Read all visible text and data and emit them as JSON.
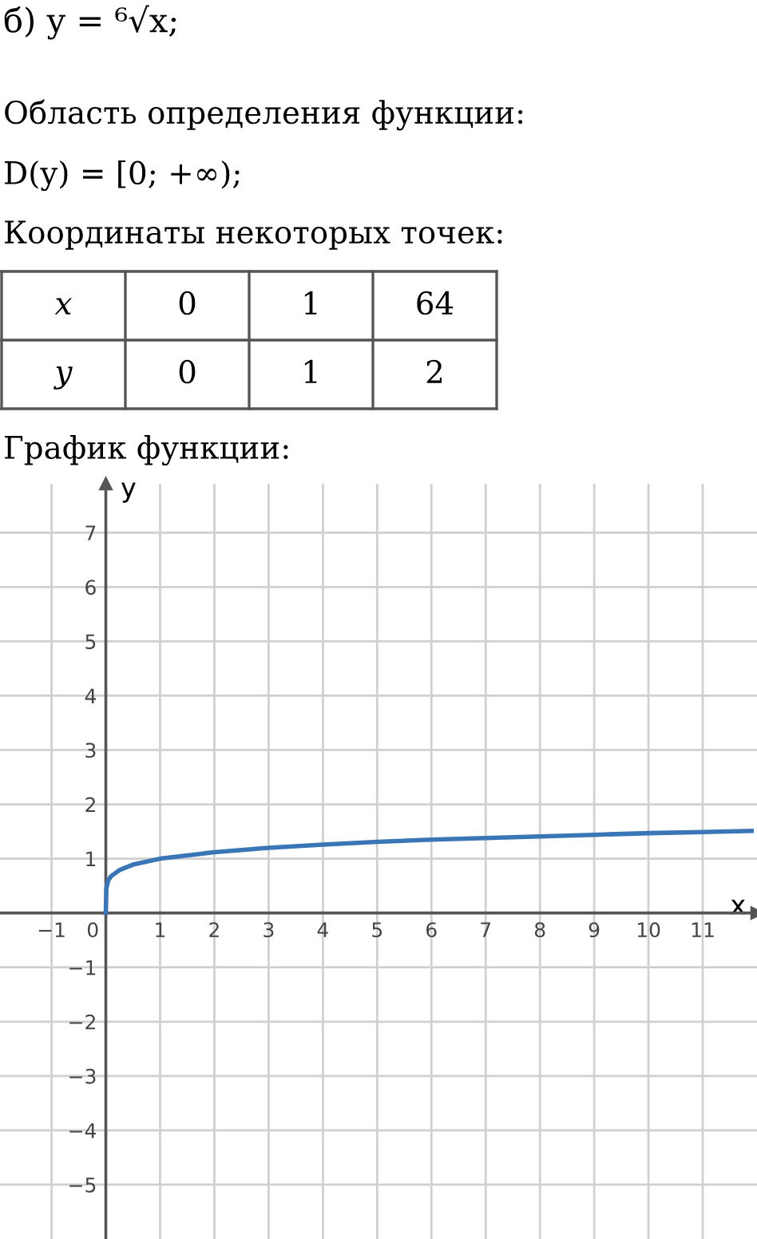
{
  "chart_data": {
    "type": "line",
    "title": "б) y = ⁶√x;",
    "annotations": [
      "Область определения функции:",
      "D(y) = [0; +∞);",
      "Координаты некоторых точек:",
      "x",
      "0",
      "1",
      "64",
      "y",
      "0",
      "1",
      "2",
      "График функции:"
    ],
    "xlabel": "x",
    "ylabel": "y",
    "series": [
      {
        "color": "#3a75b6",
        "x": [
          0,
          0.01,
          0.05,
          0.1,
          0.25,
          0.5,
          1,
          2,
          3,
          4,
          5,
          6,
          7,
          8,
          9,
          10,
          11,
          11.9
        ],
        "values": [
          0,
          0.46,
          0.61,
          0.68,
          0.79,
          0.89,
          1,
          1.12,
          1.2,
          1.26,
          1.31,
          1.35,
          1.38,
          1.41,
          1.44,
          1.47,
          1.49,
          1.51
        ]
      }
    ],
    "xlim": [
      -1.95,
      12
    ],
    "ylim": [
      -6,
      7.9
    ],
    "xticks": [
      -1,
      0,
      1,
      2,
      3,
      4,
      5,
      6,
      7,
      8,
      9,
      10,
      11
    ],
    "yticks": [
      -5,
      -4,
      -3,
      -2,
      -1,
      1,
      2,
      3,
      4,
      5,
      6,
      7
    ],
    "grid": true,
    "marker": "none",
    "line_style": "solid"
  }
}
